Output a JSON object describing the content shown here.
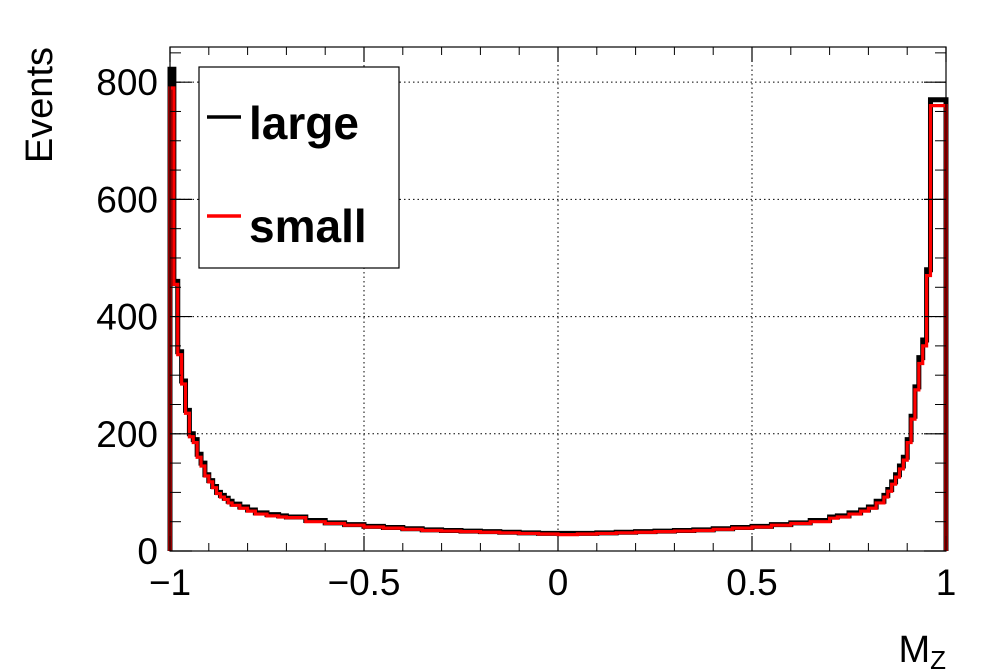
{
  "chart_data": {
    "type": "line",
    "step": true,
    "title": "",
    "xlabel": "M",
    "xlabel_sub": "Z",
    "ylabel": "Events",
    "xlim": [
      -1,
      1
    ],
    "ylim": [
      0,
      860
    ],
    "grid": true,
    "x_ticks": [
      -1,
      -0.5,
      0,
      0.5,
      1
    ],
    "x_tick_labels": [
      "−1",
      "−0.5",
      "0",
      "0.5",
      "1"
    ],
    "y_ticks": [
      0,
      200,
      400,
      600,
      800
    ],
    "y_tick_labels": [
      "0",
      "200",
      "400",
      "600",
      "800"
    ],
    "legend": {
      "position": "top-left"
    },
    "series": [
      {
        "name": "large",
        "color": "#000000",
        "x": [
          -1.0,
          -0.99,
          -0.98,
          -0.97,
          -0.96,
          -0.95,
          -0.94,
          -0.93,
          -0.92,
          -0.91,
          -0.9,
          -0.89,
          -0.88,
          -0.87,
          -0.86,
          -0.85,
          -0.84,
          -0.82,
          -0.8,
          -0.78,
          -0.75,
          -0.72,
          -0.7,
          -0.65,
          -0.6,
          -0.55,
          -0.5,
          -0.45,
          -0.4,
          -0.35,
          -0.3,
          -0.25,
          -0.2,
          -0.15,
          -0.1,
          -0.05,
          0.0,
          0.05,
          0.1,
          0.15,
          0.2,
          0.25,
          0.3,
          0.35,
          0.4,
          0.45,
          0.5,
          0.55,
          0.6,
          0.65,
          0.7,
          0.72,
          0.75,
          0.78,
          0.8,
          0.82,
          0.84,
          0.85,
          0.86,
          0.87,
          0.88,
          0.89,
          0.9,
          0.91,
          0.92,
          0.93,
          0.94,
          0.95,
          0.96,
          0.97,
          0.98,
          0.99,
          1.0
        ],
        "values": [
          822,
          460,
          340,
          290,
          240,
          200,
          190,
          165,
          150,
          130,
          120,
          110,
          100,
          95,
          90,
          85,
          80,
          75,
          70,
          65,
          62,
          60,
          58,
          52,
          48,
          45,
          42,
          40,
          38,
          36,
          35,
          34,
          33,
          32,
          31,
          30,
          30,
          30,
          31,
          32,
          33,
          34,
          35,
          36,
          38,
          40,
          42,
          45,
          48,
          52,
          58,
          60,
          65,
          70,
          75,
          85,
          95,
          105,
          118,
          130,
          145,
          160,
          190,
          230,
          280,
          330,
          360,
          480,
          770,
          770,
          770,
          770,
          0
        ]
      },
      {
        "name": "small",
        "color": "#ff0000",
        "x": [
          -1.0,
          -0.99,
          -0.98,
          -0.97,
          -0.96,
          -0.95,
          -0.94,
          -0.93,
          -0.92,
          -0.91,
          -0.9,
          -0.89,
          -0.88,
          -0.87,
          -0.86,
          -0.85,
          -0.84,
          -0.82,
          -0.8,
          -0.78,
          -0.75,
          -0.72,
          -0.7,
          -0.65,
          -0.6,
          -0.55,
          -0.5,
          -0.45,
          -0.4,
          -0.35,
          -0.3,
          -0.25,
          -0.2,
          -0.15,
          -0.1,
          -0.05,
          0.0,
          0.05,
          0.1,
          0.15,
          0.2,
          0.25,
          0.3,
          0.35,
          0.4,
          0.45,
          0.5,
          0.55,
          0.6,
          0.65,
          0.7,
          0.72,
          0.75,
          0.78,
          0.8,
          0.82,
          0.84,
          0.85,
          0.86,
          0.87,
          0.88,
          0.89,
          0.9,
          0.91,
          0.92,
          0.93,
          0.94,
          0.95,
          0.96,
          0.97,
          0.98,
          0.99,
          1.0
        ],
        "values": [
          790,
          455,
          335,
          285,
          235,
          195,
          185,
          160,
          145,
          128,
          118,
          108,
          98,
          92,
          88,
          82,
          78,
          73,
          68,
          63,
          60,
          58,
          57,
          50,
          47,
          44,
          41,
          39,
          37,
          35,
          34,
          33,
          32,
          31,
          30,
          29,
          28,
          29,
          30,
          31,
          32,
          33,
          34,
          35,
          37,
          39,
          41,
          44,
          47,
          50,
          56,
          58,
          63,
          68,
          73,
          82,
          92,
          102,
          114,
          126,
          140,
          155,
          185,
          225,
          275,
          320,
          350,
          470,
          760,
          760,
          760,
          760,
          0
        ]
      }
    ]
  }
}
